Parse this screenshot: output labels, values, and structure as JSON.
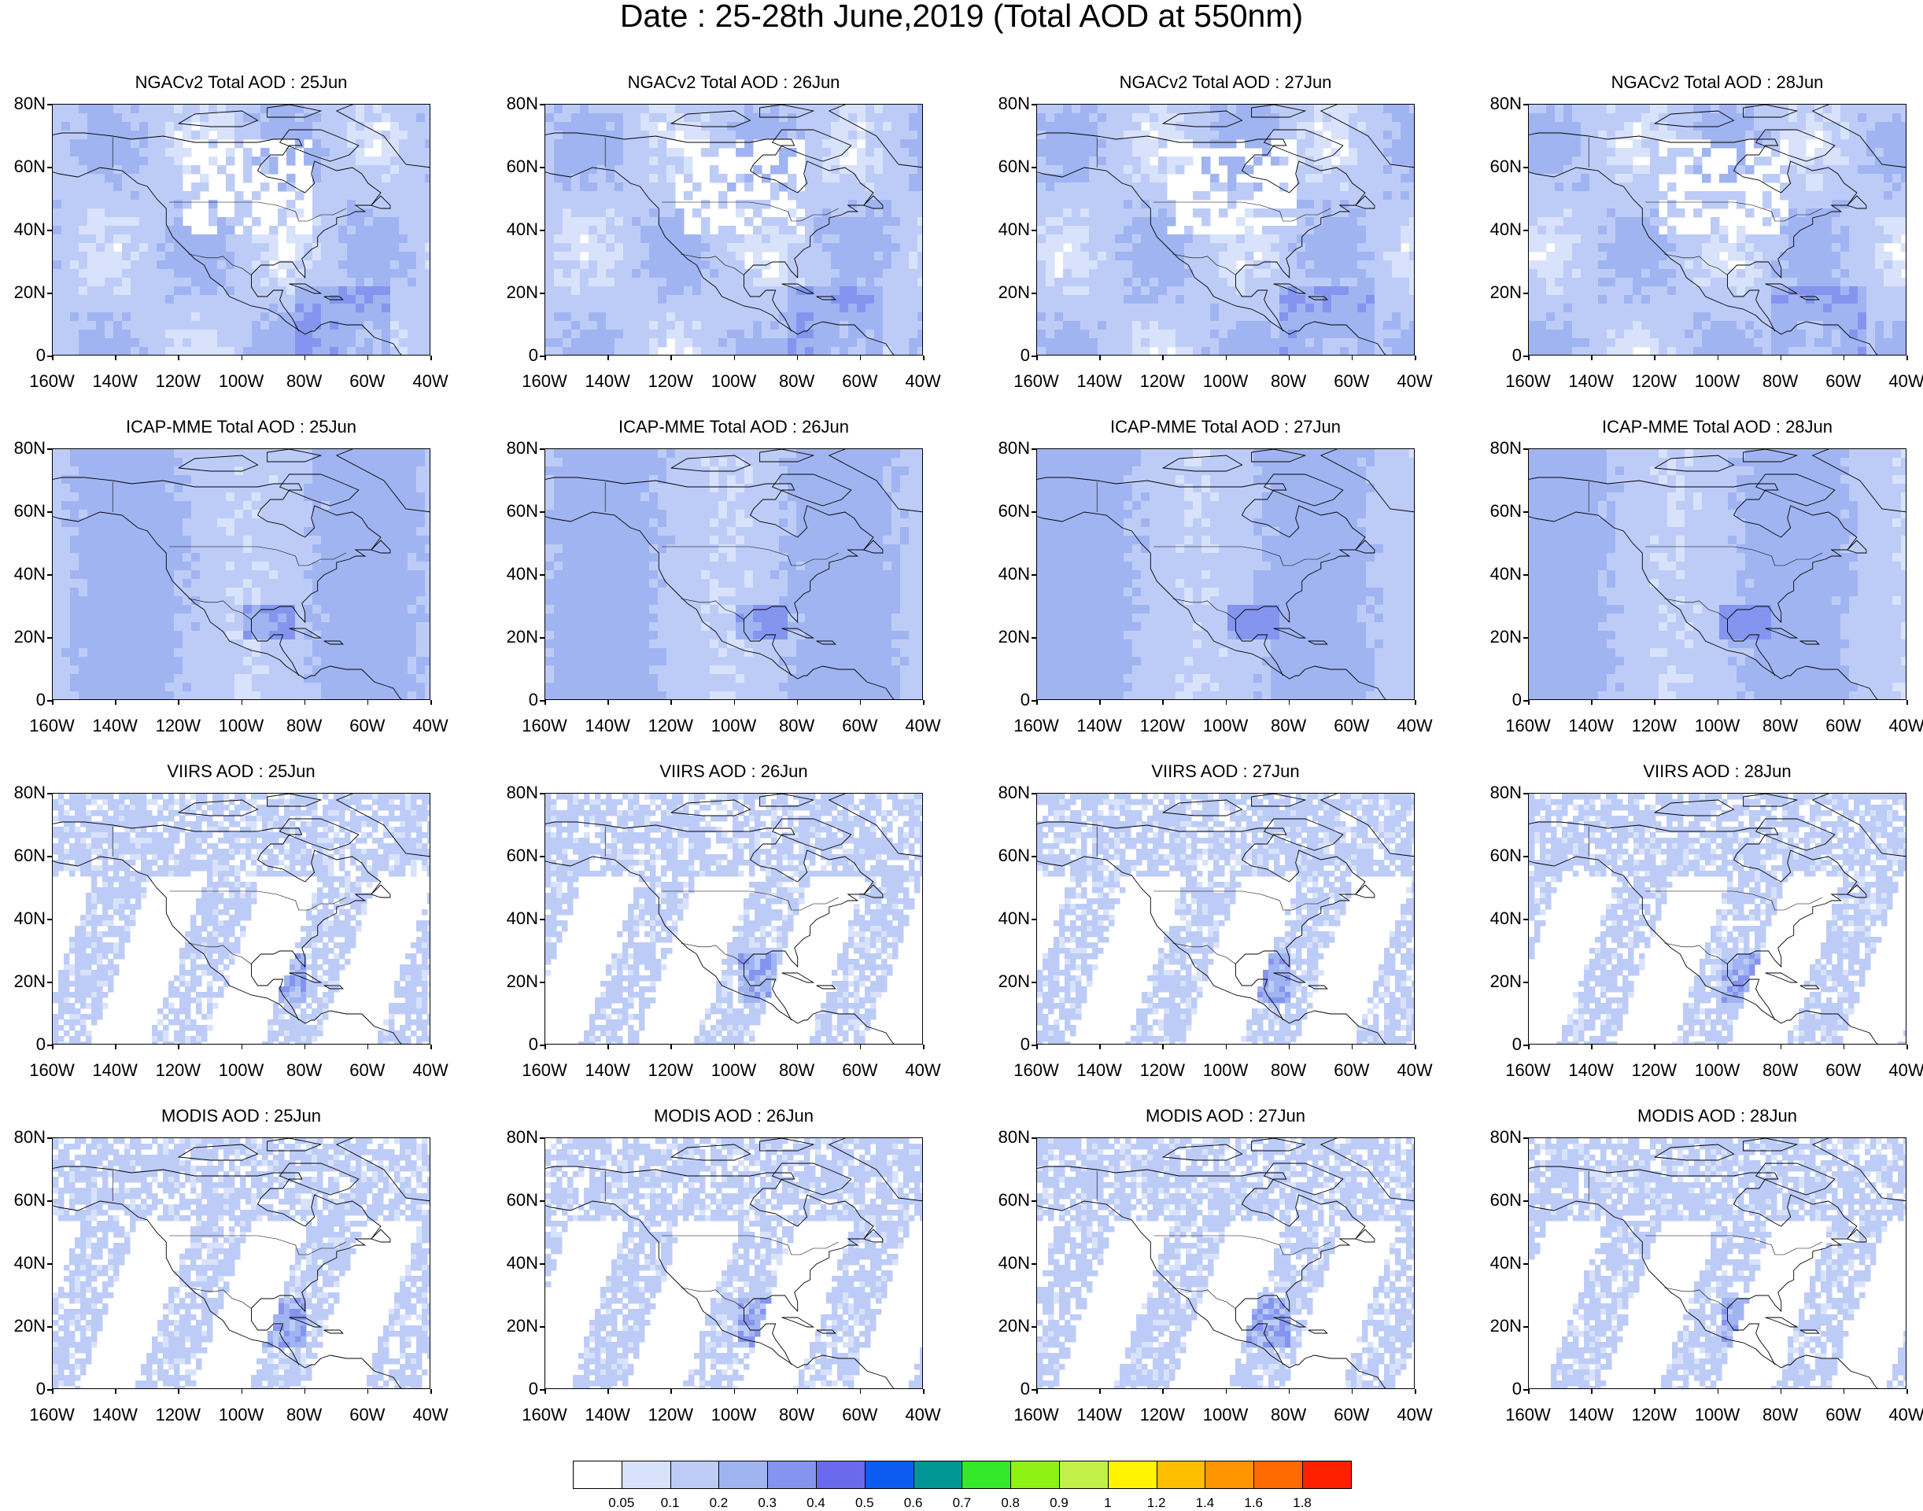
{
  "title": "Date : 25-28th June,2019 (Total AOD at 550nm)",
  "panels": [
    {
      "row": 0,
      "col": 0,
      "title": "NGACv2 Total AOD : 25Jun",
      "product": "NGACv2",
      "date": "25Jun"
    },
    {
      "row": 0,
      "col": 1,
      "title": "NGACv2 Total AOD : 26Jun",
      "product": "NGACv2",
      "date": "26Jun"
    },
    {
      "row": 0,
      "col": 2,
      "title": "NGACv2 Total AOD : 27Jun",
      "product": "NGACv2",
      "date": "27Jun"
    },
    {
      "row": 0,
      "col": 3,
      "title": "NGACv2 Total AOD : 28Jun",
      "product": "NGACv2",
      "date": "28Jun"
    },
    {
      "row": 1,
      "col": 0,
      "title": "ICAP-MME Total AOD : 25Jun",
      "product": "ICAP-MME",
      "date": "25Jun"
    },
    {
      "row": 1,
      "col": 1,
      "title": "ICAP-MME Total AOD : 26Jun",
      "product": "ICAP-MME",
      "date": "26Jun"
    },
    {
      "row": 1,
      "col": 2,
      "title": "ICAP-MME Total AOD : 27Jun",
      "product": "ICAP-MME",
      "date": "27Jun"
    },
    {
      "row": 1,
      "col": 3,
      "title": "ICAP-MME Total AOD : 28Jun",
      "product": "ICAP-MME",
      "date": "28Jun"
    },
    {
      "row": 2,
      "col": 0,
      "title": "VIIRS AOD : 25Jun",
      "product": "VIIRS",
      "date": "25Jun"
    },
    {
      "row": 2,
      "col": 1,
      "title": "VIIRS AOD : 26Jun",
      "product": "VIIRS",
      "date": "26Jun"
    },
    {
      "row": 2,
      "col": 2,
      "title": "VIIRS AOD : 27Jun",
      "product": "VIIRS",
      "date": "27Jun"
    },
    {
      "row": 2,
      "col": 3,
      "title": "VIIRS AOD : 28Jun",
      "product": "VIIRS",
      "date": "28Jun"
    },
    {
      "row": 3,
      "col": 0,
      "title": "MODIS AOD : 25Jun",
      "product": "MODIS",
      "date": "25Jun"
    },
    {
      "row": 3,
      "col": 1,
      "title": "MODIS AOD : 26Jun",
      "product": "MODIS",
      "date": "26Jun"
    },
    {
      "row": 3,
      "col": 2,
      "title": "MODIS AOD : 27Jun",
      "product": "MODIS",
      "date": "27Jun"
    },
    {
      "row": 3,
      "col": 3,
      "title": "MODIS AOD : 28Jun",
      "product": "MODIS",
      "date": "28Jun"
    }
  ],
  "axes": {
    "lon_ticks": [
      "160W",
      "140W",
      "120W",
      "100W",
      "80W",
      "60W",
      "40W"
    ],
    "lat_ticks": [
      "80N",
      "60N",
      "40N",
      "20N",
      "0"
    ],
    "lon_range": [
      -160,
      -40
    ],
    "lat_range": [
      0,
      80
    ]
  },
  "colorbar": {
    "labels": [
      "0.05",
      "0.1",
      "0.2",
      "0.3",
      "0.4",
      "0.5",
      "0.6",
      "0.7",
      "0.8",
      "0.9",
      "1",
      "1.2",
      "1.4",
      "1.6",
      "1.8"
    ],
    "colors": [
      "#ffffff",
      "#d8e2fb",
      "#bdccf7",
      "#a1b4f2",
      "#8595ef",
      "#6a6aec",
      "#0d5cf0",
      "#009696",
      "#34e82a",
      "#8ef214",
      "#c2f048",
      "#fff300",
      "#ffbf00",
      "#ff9500",
      "#ff6a00",
      "#ff2000"
    ]
  }
}
